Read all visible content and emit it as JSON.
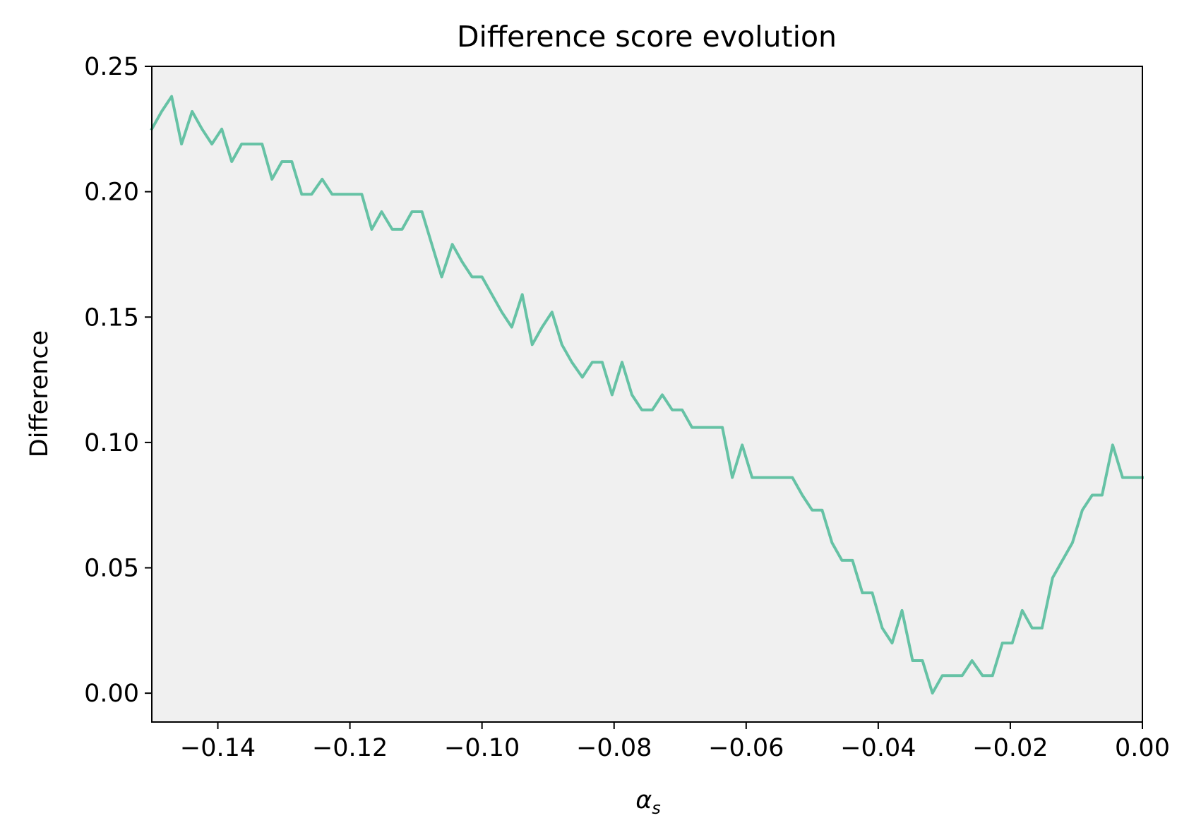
{
  "chart_data": {
    "type": "line",
    "title": "Difference score evolution",
    "xlabel": "α",
    "xlabel_subscript": "s",
    "ylabel": "Difference",
    "xlim": [
      -0.15,
      0.0
    ],
    "ylim": [
      -0.0115,
      0.25
    ],
    "xticks": [
      -0.14,
      -0.12,
      -0.1,
      -0.08,
      -0.06,
      -0.04,
      -0.02,
      0.0
    ],
    "xtick_labels": [
      "−0.14",
      "−0.12",
      "−0.10",
      "−0.08",
      "−0.06",
      "−0.04",
      "−0.02",
      "0.00"
    ],
    "yticks": [
      0.0,
      0.05,
      0.1,
      0.15,
      0.2,
      0.25
    ],
    "ytick_labels": [
      "0.00",
      "0.05",
      "0.10",
      "0.15",
      "0.20",
      "0.25"
    ],
    "grid": false,
    "background_color": "#f0f0f0",
    "line_color": "#66c2a5",
    "series": [
      {
        "x": [
          -0.15,
          -0.1485,
          -0.147,
          -0.1455,
          -0.1439,
          -0.1424,
          -0.1409,
          -0.1394,
          -0.1379,
          -0.1364,
          -0.1348,
          -0.1333,
          -0.1318,
          -0.1303,
          -0.1288,
          -0.1273,
          -0.1258,
          -0.1242,
          -0.1227,
          -0.1212,
          -0.1197,
          -0.1182,
          -0.1167,
          -0.1152,
          -0.1136,
          -0.1121,
          -0.1106,
          -0.1091,
          -0.1076,
          -0.1061,
          -0.1045,
          -0.103,
          -0.1015,
          -0.1,
          -0.0985,
          -0.097,
          -0.0955,
          -0.0939,
          -0.0924,
          -0.0909,
          -0.0894,
          -0.0879,
          -0.0864,
          -0.0848,
          -0.0833,
          -0.0818,
          -0.0803,
          -0.0788,
          -0.0773,
          -0.0758,
          -0.0742,
          -0.0727,
          -0.0712,
          -0.0697,
          -0.0682,
          -0.0667,
          -0.0652,
          -0.0636,
          -0.0621,
          -0.0606,
          -0.0591,
          -0.0576,
          -0.0561,
          -0.0545,
          -0.053,
          -0.0515,
          -0.05,
          -0.0485,
          -0.047,
          -0.0455,
          -0.0439,
          -0.0424,
          -0.0409,
          -0.0394,
          -0.0379,
          -0.0364,
          -0.0348,
          -0.0333,
          -0.0318,
          -0.0303,
          -0.0288,
          -0.0273,
          -0.0258,
          -0.0242,
          -0.0227,
          -0.0212,
          -0.0197,
          -0.0182,
          -0.0167,
          -0.0152,
          -0.0136,
          -0.0121,
          -0.0106,
          -0.0091,
          -0.0076,
          -0.0061,
          -0.0045,
          -0.003,
          -0.0015,
          0.0
        ],
        "y": [
          0.225,
          0.232,
          0.238,
          0.219,
          0.232,
          0.225,
          0.219,
          0.225,
          0.212,
          0.219,
          0.219,
          0.219,
          0.205,
          0.212,
          0.212,
          0.199,
          0.199,
          0.205,
          0.199,
          0.199,
          0.199,
          0.199,
          0.185,
          0.192,
          0.185,
          0.185,
          0.192,
          0.192,
          0.179,
          0.166,
          0.179,
          0.172,
          0.166,
          0.166,
          0.159,
          0.152,
          0.146,
          0.159,
          0.139,
          0.146,
          0.152,
          0.139,
          0.132,
          0.126,
          0.132,
          0.132,
          0.119,
          0.132,
          0.119,
          0.113,
          0.113,
          0.119,
          0.113,
          0.113,
          0.106,
          0.106,
          0.106,
          0.106,
          0.086,
          0.099,
          0.086,
          0.086,
          0.086,
          0.086,
          0.086,
          0.079,
          0.073,
          0.073,
          0.06,
          0.053,
          0.053,
          0.04,
          0.04,
          0.026,
          0.02,
          0.033,
          0.013,
          0.013,
          0.0,
          0.007,
          0.007,
          0.007,
          0.013,
          0.007,
          0.007,
          0.02,
          0.02,
          0.033,
          0.026,
          0.026,
          0.046,
          0.053,
          0.06,
          0.073,
          0.079,
          0.079,
          0.099,
          0.086,
          0.086,
          0.086
        ]
      }
    ]
  }
}
